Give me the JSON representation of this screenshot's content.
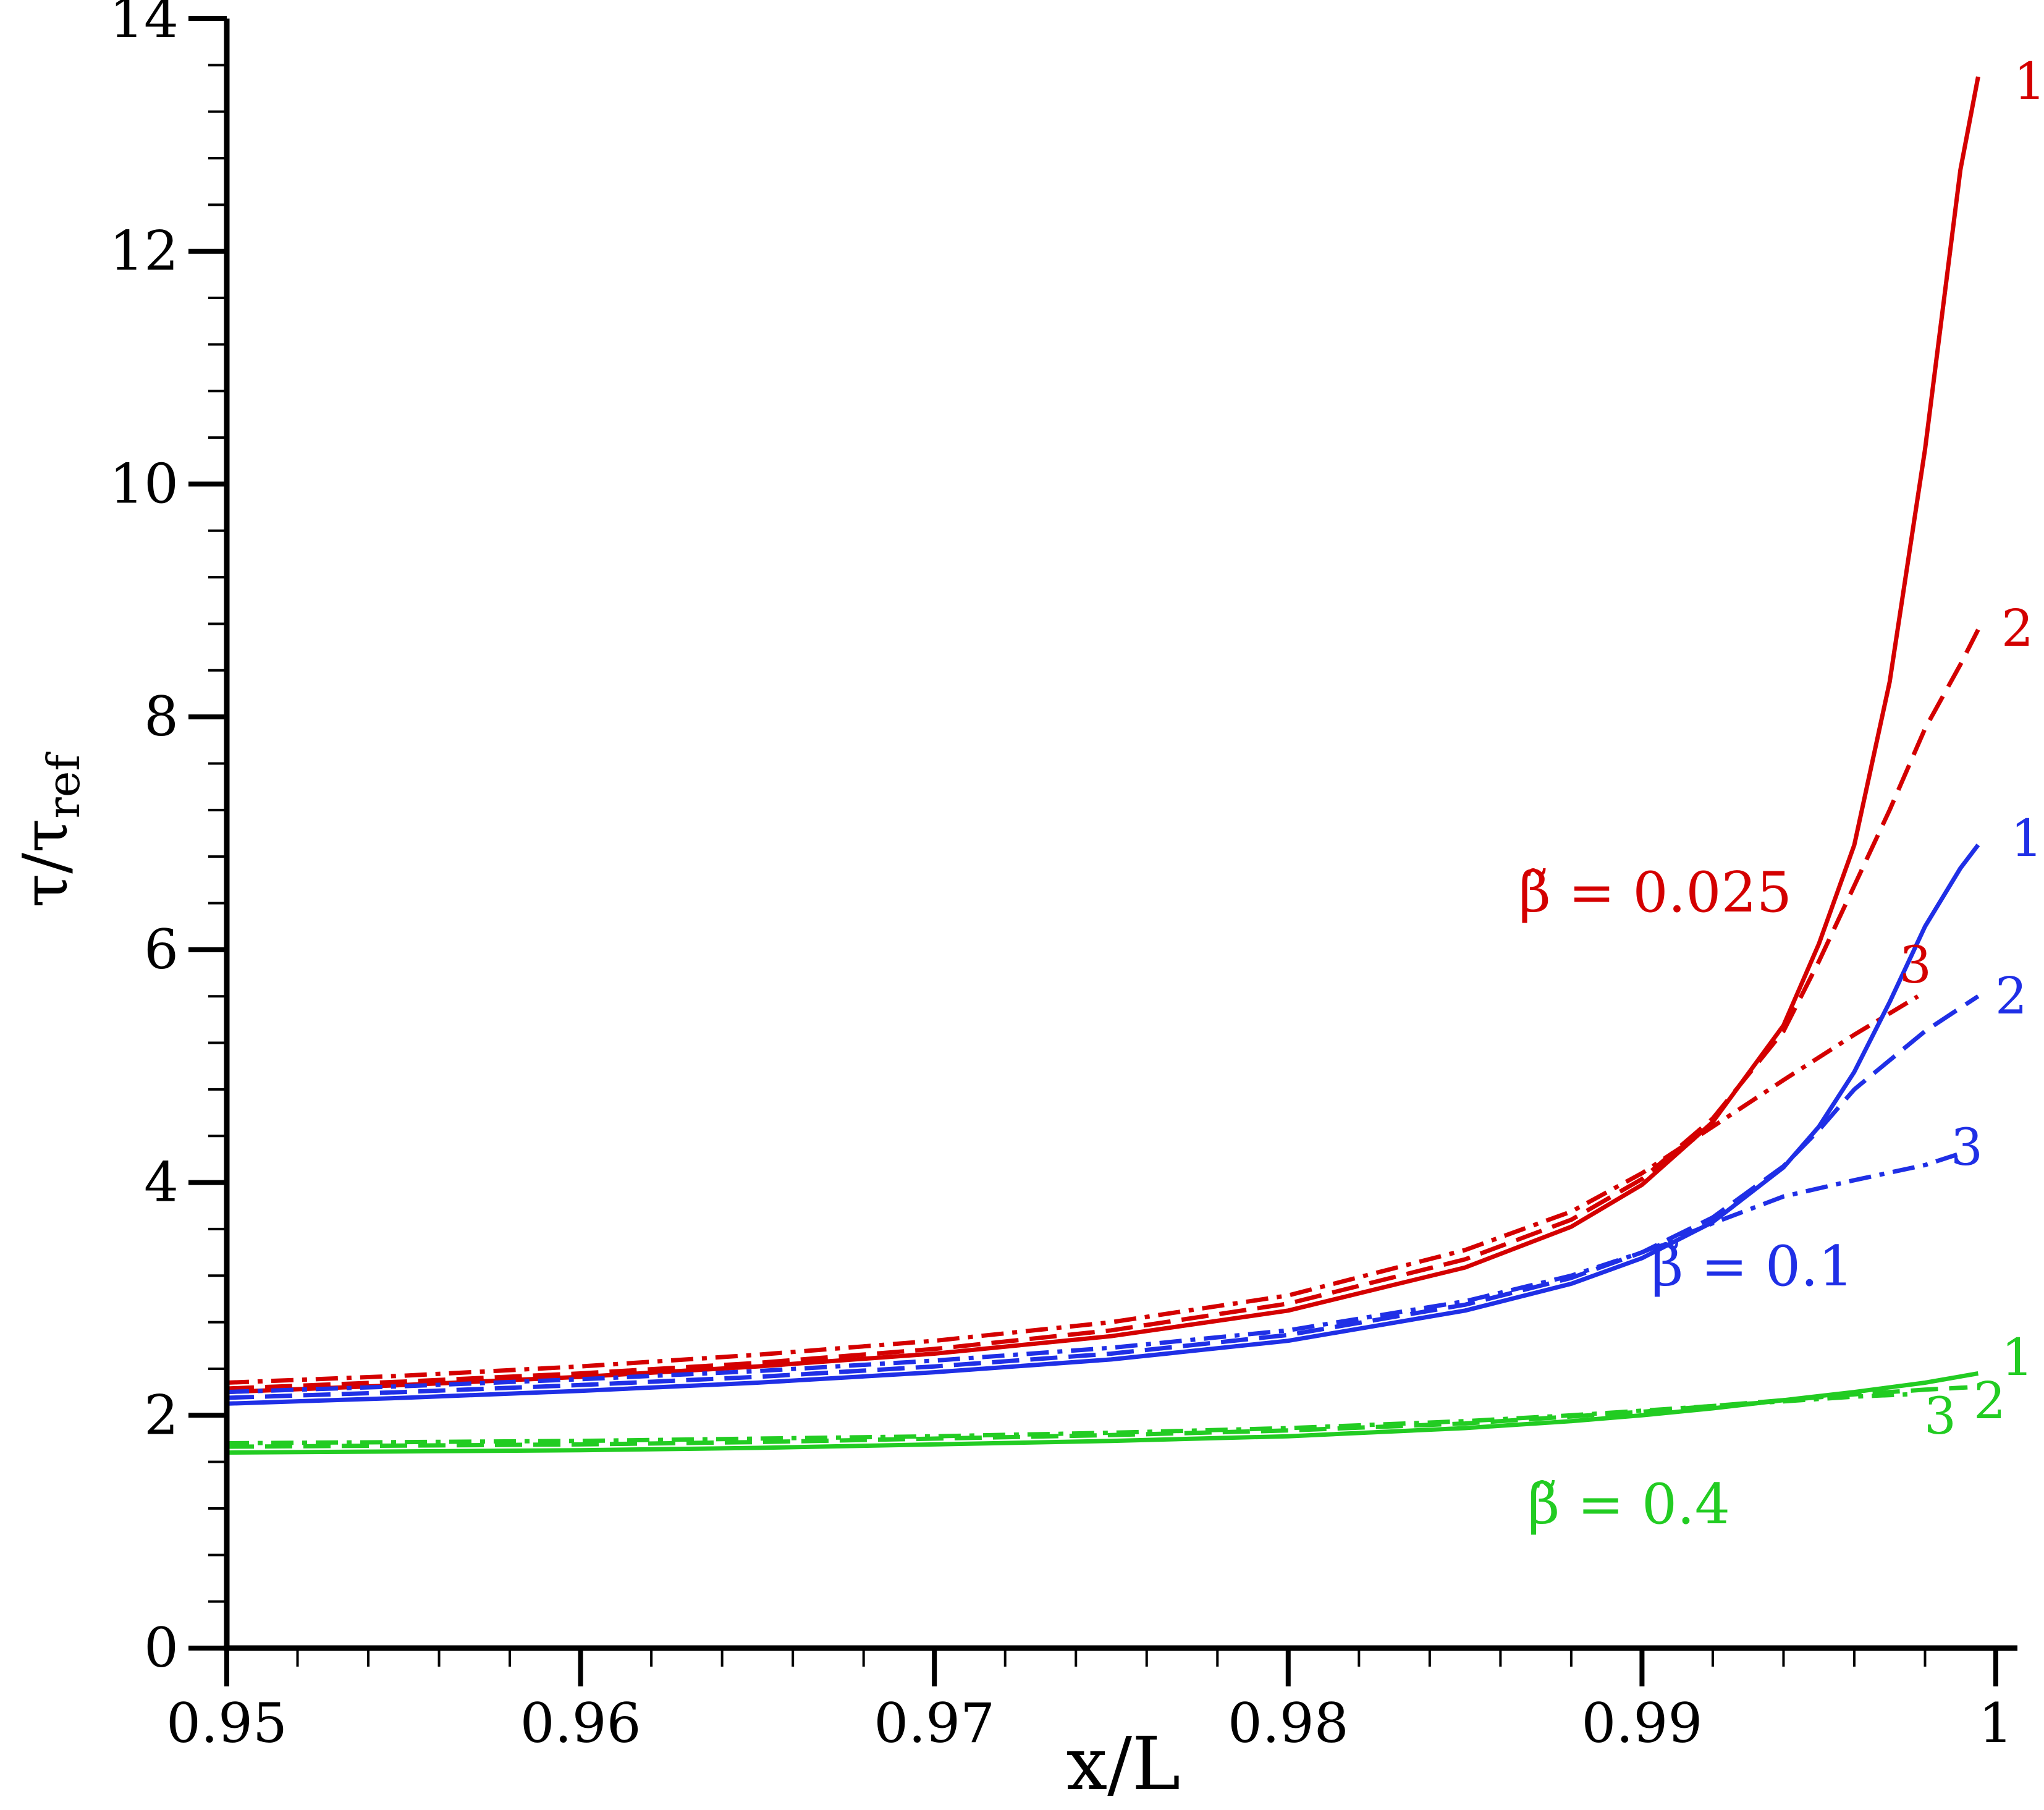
{
  "chart_data": {
    "type": "line",
    "xlabel": "x/L",
    "ylabel_main": "τ/τ",
    "ylabel_sub": "ref",
    "xlim": [
      0.95,
      1.0
    ],
    "ylim": [
      0,
      14
    ],
    "x_major_ticks": [
      0.95,
      0.96,
      0.97,
      0.98,
      0.99,
      1
    ],
    "x_tick_labels": [
      "0.95",
      "0.96",
      "0.97",
      "0.98",
      "0.99",
      "1"
    ],
    "y_major_ticks": [
      0,
      2,
      4,
      6,
      8,
      10,
      12,
      14
    ],
    "y_tick_labels": [
      "0",
      "2",
      "4",
      "6",
      "8",
      "10",
      "12",
      "14"
    ],
    "x_minor_step": 0.002,
    "y_minor_step": 0.4,
    "grid": false,
    "colors": {
      "red": "#d40000",
      "blue": "#1f2fe6",
      "green": "#22cc22"
    },
    "groups": [
      {
        "label": "β̃ = 0.025",
        "color": "#d40000",
        "series": [
          {
            "name": "1",
            "style": "solid",
            "x": [
              0.95,
              0.955,
              0.96,
              0.965,
              0.97,
              0.975,
              0.98,
              0.985,
              0.988,
              0.99,
              0.992,
              0.994,
              0.995,
              0.996,
              0.997,
              0.998,
              0.999,
              0.9995
            ],
            "y": [
              2.2,
              2.26,
              2.33,
              2.42,
              2.53,
              2.68,
              2.9,
              3.27,
              3.62,
              3.98,
              4.52,
              5.35,
              6.05,
              6.9,
              8.3,
              10.3,
              12.7,
              13.5
            ]
          },
          {
            "name": "2",
            "style": "dashed",
            "x": [
              0.95,
              0.955,
              0.96,
              0.965,
              0.97,
              0.975,
              0.98,
              0.985,
              0.988,
              0.99,
              0.992,
              0.994,
              0.995,
              0.996,
              0.997,
              0.998,
              0.999,
              0.9995
            ],
            "y": [
              2.23,
              2.29,
              2.36,
              2.45,
              2.57,
              2.73,
              2.96,
              3.34,
              3.68,
              4.03,
              4.55,
              5.3,
              5.9,
              6.55,
              7.2,
              7.9,
              8.45,
              8.75
            ]
          },
          {
            "name": "3",
            "style": "dashdot",
            "x": [
              0.95,
              0.955,
              0.96,
              0.965,
              0.97,
              0.975,
              0.98,
              0.985,
              0.988,
              0.99,
              0.992,
              0.994,
              0.996,
              0.9978
            ],
            "y": [
              2.28,
              2.34,
              2.42,
              2.52,
              2.64,
              2.8,
              3.03,
              3.42,
              3.75,
              4.08,
              4.48,
              4.88,
              5.27,
              5.6
            ]
          }
        ]
      },
      {
        "label": "β̃ = 0.1",
        "color": "#1f2fe6",
        "series": [
          {
            "name": "1",
            "style": "solid",
            "x": [
              0.95,
              0.955,
              0.96,
              0.965,
              0.97,
              0.975,
              0.98,
              0.985,
              0.988,
              0.99,
              0.992,
              0.994,
              0.995,
              0.996,
              0.997,
              0.998,
              0.999,
              0.9995
            ],
            "y": [
              2.1,
              2.15,
              2.21,
              2.28,
              2.37,
              2.48,
              2.64,
              2.9,
              3.13,
              3.35,
              3.66,
              4.13,
              4.48,
              4.95,
              5.55,
              6.2,
              6.7,
              6.9
            ]
          },
          {
            "name": "2",
            "style": "dashed",
            "x": [
              0.95,
              0.955,
              0.96,
              0.965,
              0.97,
              0.975,
              0.98,
              0.985,
              0.988,
              0.99,
              0.992,
              0.994,
              0.995,
              0.996,
              0.997,
              0.998,
              0.999,
              0.9995
            ],
            "y": [
              2.15,
              2.2,
              2.26,
              2.33,
              2.42,
              2.53,
              2.69,
              2.95,
              3.18,
              3.4,
              3.7,
              4.14,
              4.45,
              4.8,
              5.05,
              5.3,
              5.5,
              5.6
            ]
          },
          {
            "name": "3",
            "style": "dashdot",
            "x": [
              0.95,
              0.955,
              0.96,
              0.965,
              0.97,
              0.975,
              0.98,
              0.985,
              0.988,
              0.99,
              0.992,
              0.994,
              0.996,
              0.998,
              0.999
            ],
            "y": [
              2.2,
              2.25,
              2.31,
              2.38,
              2.47,
              2.58,
              2.73,
              2.98,
              3.2,
              3.4,
              3.65,
              3.88,
              4.02,
              4.15,
              4.25
            ]
          }
        ]
      },
      {
        "label": "β̃ = 0.4",
        "color": "#22cc22",
        "series": [
          {
            "name": "1",
            "style": "solid",
            "x": [
              0.95,
              0.955,
              0.96,
              0.965,
              0.97,
              0.975,
              0.98,
              0.985,
              0.988,
              0.99,
              0.992,
              0.994,
              0.996,
              0.998,
              0.9995
            ],
            "y": [
              1.68,
              1.69,
              1.7,
              1.72,
              1.75,
              1.78,
              1.82,
              1.89,
              1.95,
              2.0,
              2.06,
              2.13,
              2.2,
              2.28,
              2.36
            ]
          },
          {
            "name": "2",
            "style": "dashed",
            "x": [
              0.95,
              0.955,
              0.96,
              0.965,
              0.97,
              0.975,
              0.98,
              0.985,
              0.988,
              0.99,
              0.992,
              0.994,
              0.996,
              0.998,
              0.9992
            ],
            "y": [
              1.73,
              1.74,
              1.75,
              1.77,
              1.8,
              1.83,
              1.87,
              1.93,
              1.99,
              2.03,
              2.08,
              2.13,
              2.18,
              2.22,
              2.24
            ]
          },
          {
            "name": "3",
            "style": "dashdot",
            "x": [
              0.95,
              0.955,
              0.96,
              0.965,
              0.97,
              0.975,
              0.98,
              0.985,
              0.988,
              0.99,
              0.992,
              0.994,
              0.996,
              0.9975
            ],
            "y": [
              1.76,
              1.77,
              1.78,
              1.8,
              1.82,
              1.85,
              1.89,
              1.95,
              2.0,
              2.04,
              2.08,
              2.12,
              2.16,
              2.18
            ]
          }
        ]
      }
    ]
  }
}
